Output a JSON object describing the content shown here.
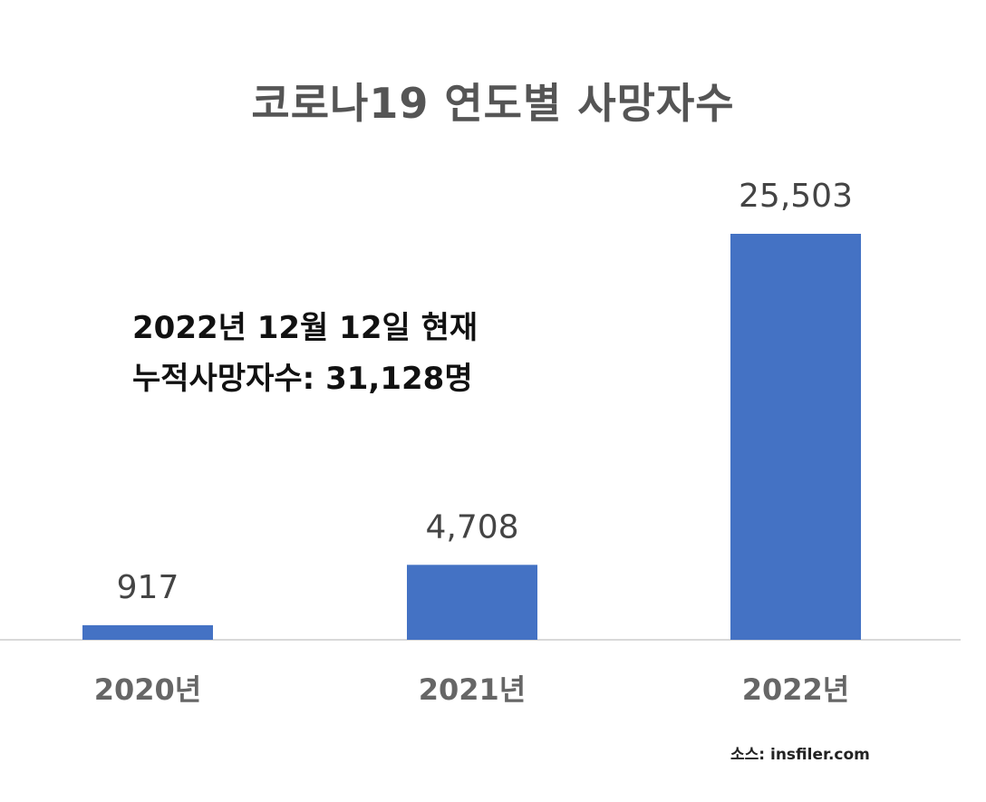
{
  "chart_data": {
    "type": "bar",
    "title": "코로나19 연도별 사망자수",
    "categories": [
      "2020년",
      "2021년",
      "2022년"
    ],
    "values": [
      917,
      4708,
      25503
    ],
    "value_labels": [
      "917",
      "4,708",
      "25,503"
    ],
    "xlabel": "",
    "ylabel": "",
    "ylim": [
      0,
      25503
    ],
    "grid": false,
    "legend": "none",
    "bar_color": "#4472c4",
    "annotation": [
      "2022년 12월 12일 현재",
      "누적사망자수: 31,128명"
    ],
    "source": "소스: insfiler.com"
  }
}
